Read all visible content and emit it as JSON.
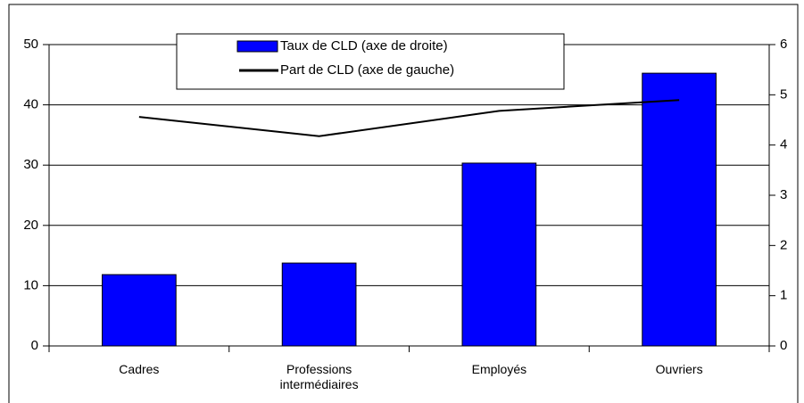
{
  "chart_data": {
    "type": "bar",
    "categories": [
      "Cadres",
      "Professions intermédiaires",
      "Employés",
      "Ouvriers"
    ],
    "series": [
      {
        "name": "Taux de CLD (axe de droite)",
        "type": "bar",
        "axis": "y2",
        "color": "#0000ff",
        "values": [
          1.42,
          1.65,
          3.64,
          5.43
        ]
      },
      {
        "name": "Part de CLD (axe de gauche)",
        "type": "line",
        "axis": "y",
        "color": "#000000",
        "values": [
          38.0,
          34.8,
          39.0,
          40.8
        ]
      }
    ],
    "ylim": [
      0,
      50
    ],
    "yticks": [
      0,
      10,
      20,
      30,
      40,
      50
    ],
    "y2lim": [
      0,
      6
    ],
    "y2ticks": [
      0,
      1,
      2,
      3,
      4,
      5,
      6
    ],
    "grid": true,
    "legend": "top"
  }
}
